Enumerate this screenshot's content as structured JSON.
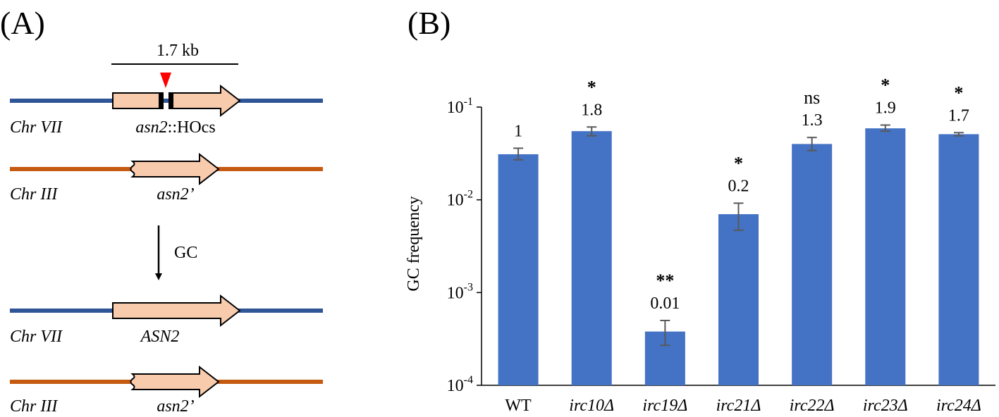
{
  "panel_a": {
    "label": "(A)",
    "scale_bar": "1.7 kb",
    "arrow_label": "GC",
    "rows": [
      {
        "chromosome": "Chr VII",
        "gene_label_italic": "asn2",
        "gene_label_rest": "::HOcs"
      },
      {
        "chromosome": "Chr III",
        "gene_label_italic": "asn2’",
        "gene_label_rest": ""
      },
      {
        "chromosome": "Chr VII",
        "gene_label_italic": "ASN2",
        "gene_label_rest": ""
      },
      {
        "chromosome": "Chr III",
        "gene_label_italic": "asn2’",
        "gene_label_rest": ""
      }
    ],
    "colors": {
      "chr_vii_line": "#2f5597",
      "chr_iii_line": "#c55a11",
      "gene_fill": "#f8cbad",
      "cut_marker": "#ff0000"
    }
  },
  "panel_b": {
    "label": "(B)"
  },
  "chart_data": {
    "type": "bar",
    "log_scale": true,
    "ylabel": "GC frequency",
    "xlabel": "",
    "ylim": [
      0.0001,
      0.1
    ],
    "y_ticks": [
      {
        "value": 0.1,
        "base": "10",
        "exp": "-1"
      },
      {
        "value": 0.01,
        "base": "10",
        "exp": "-2"
      },
      {
        "value": 0.001,
        "base": "10",
        "exp": "-3"
      },
      {
        "value": 0.0001,
        "base": "10",
        "exp": "-4"
      }
    ],
    "categories": [
      "WT",
      "irc10Δ",
      "irc19Δ",
      "irc21Δ",
      "irc22Δ",
      "irc23Δ",
      "irc24Δ"
    ],
    "italic_categories": [
      false,
      true,
      true,
      true,
      true,
      true,
      true
    ],
    "values": [
      0.031,
      0.055,
      0.00038,
      0.007,
      0.04,
      0.059,
      0.051
    ],
    "error_low": [
      0.027,
      0.049,
      0.00027,
      0.0047,
      0.034,
      0.055,
      0.049
    ],
    "error_high": [
      0.036,
      0.061,
      0.0005,
      0.0092,
      0.047,
      0.064,
      0.053
    ],
    "value_labels": [
      "1",
      "1.8",
      "0.01",
      "0.2",
      "1.3",
      "1.9",
      "1.7"
    ],
    "significance": [
      "",
      "*",
      "**",
      "*",
      "ns",
      "*",
      "*"
    ],
    "bar_color": "#4472c4",
    "error_color": "#595959",
    "grid": false,
    "legend": "none"
  }
}
